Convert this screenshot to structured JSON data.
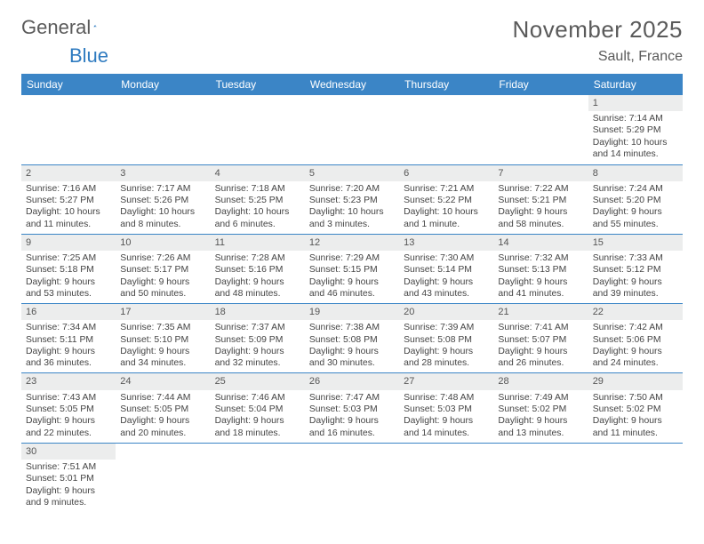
{
  "logo": {
    "text1": "General",
    "text2": "Blue",
    "sail_color": "#2f7bc0"
  },
  "header": {
    "title": "November 2025",
    "location": "Sault, France"
  },
  "colors": {
    "header_bg": "#3b85c6",
    "daynum_bg": "#eceded",
    "rule": "#3b85c6"
  },
  "daynames": [
    "Sunday",
    "Monday",
    "Tuesday",
    "Wednesday",
    "Thursday",
    "Friday",
    "Saturday"
  ],
  "layout": {
    "first_weekday": 6,
    "days_in_month": 30
  },
  "days": {
    "1": {
      "sunrise": "7:14 AM",
      "sunset": "5:29 PM",
      "daylight": "10 hours and 14 minutes."
    },
    "2": {
      "sunrise": "7:16 AM",
      "sunset": "5:27 PM",
      "daylight": "10 hours and 11 minutes."
    },
    "3": {
      "sunrise": "7:17 AM",
      "sunset": "5:26 PM",
      "daylight": "10 hours and 8 minutes."
    },
    "4": {
      "sunrise": "7:18 AM",
      "sunset": "5:25 PM",
      "daylight": "10 hours and 6 minutes."
    },
    "5": {
      "sunrise": "7:20 AM",
      "sunset": "5:23 PM",
      "daylight": "10 hours and 3 minutes."
    },
    "6": {
      "sunrise": "7:21 AM",
      "sunset": "5:22 PM",
      "daylight": "10 hours and 1 minute."
    },
    "7": {
      "sunrise": "7:22 AM",
      "sunset": "5:21 PM",
      "daylight": "9 hours and 58 minutes."
    },
    "8": {
      "sunrise": "7:24 AM",
      "sunset": "5:20 PM",
      "daylight": "9 hours and 55 minutes."
    },
    "9": {
      "sunrise": "7:25 AM",
      "sunset": "5:18 PM",
      "daylight": "9 hours and 53 minutes."
    },
    "10": {
      "sunrise": "7:26 AM",
      "sunset": "5:17 PM",
      "daylight": "9 hours and 50 minutes."
    },
    "11": {
      "sunrise": "7:28 AM",
      "sunset": "5:16 PM",
      "daylight": "9 hours and 48 minutes."
    },
    "12": {
      "sunrise": "7:29 AM",
      "sunset": "5:15 PM",
      "daylight": "9 hours and 46 minutes."
    },
    "13": {
      "sunrise": "7:30 AM",
      "sunset": "5:14 PM",
      "daylight": "9 hours and 43 minutes."
    },
    "14": {
      "sunrise": "7:32 AM",
      "sunset": "5:13 PM",
      "daylight": "9 hours and 41 minutes."
    },
    "15": {
      "sunrise": "7:33 AM",
      "sunset": "5:12 PM",
      "daylight": "9 hours and 39 minutes."
    },
    "16": {
      "sunrise": "7:34 AM",
      "sunset": "5:11 PM",
      "daylight": "9 hours and 36 minutes."
    },
    "17": {
      "sunrise": "7:35 AM",
      "sunset": "5:10 PM",
      "daylight": "9 hours and 34 minutes."
    },
    "18": {
      "sunrise": "7:37 AM",
      "sunset": "5:09 PM",
      "daylight": "9 hours and 32 minutes."
    },
    "19": {
      "sunrise": "7:38 AM",
      "sunset": "5:08 PM",
      "daylight": "9 hours and 30 minutes."
    },
    "20": {
      "sunrise": "7:39 AM",
      "sunset": "5:08 PM",
      "daylight": "9 hours and 28 minutes."
    },
    "21": {
      "sunrise": "7:41 AM",
      "sunset": "5:07 PM",
      "daylight": "9 hours and 26 minutes."
    },
    "22": {
      "sunrise": "7:42 AM",
      "sunset": "5:06 PM",
      "daylight": "9 hours and 24 minutes."
    },
    "23": {
      "sunrise": "7:43 AM",
      "sunset": "5:05 PM",
      "daylight": "9 hours and 22 minutes."
    },
    "24": {
      "sunrise": "7:44 AM",
      "sunset": "5:05 PM",
      "daylight": "9 hours and 20 minutes."
    },
    "25": {
      "sunrise": "7:46 AM",
      "sunset": "5:04 PM",
      "daylight": "9 hours and 18 minutes."
    },
    "26": {
      "sunrise": "7:47 AM",
      "sunset": "5:03 PM",
      "daylight": "9 hours and 16 minutes."
    },
    "27": {
      "sunrise": "7:48 AM",
      "sunset": "5:03 PM",
      "daylight": "9 hours and 14 minutes."
    },
    "28": {
      "sunrise": "7:49 AM",
      "sunset": "5:02 PM",
      "daylight": "9 hours and 13 minutes."
    },
    "29": {
      "sunrise": "7:50 AM",
      "sunset": "5:02 PM",
      "daylight": "9 hours and 11 minutes."
    },
    "30": {
      "sunrise": "7:51 AM",
      "sunset": "5:01 PM",
      "daylight": "9 hours and 9 minutes."
    }
  },
  "labels": {
    "sunrise": "Sunrise: ",
    "sunset": "Sunset: ",
    "daylight": "Daylight: "
  }
}
